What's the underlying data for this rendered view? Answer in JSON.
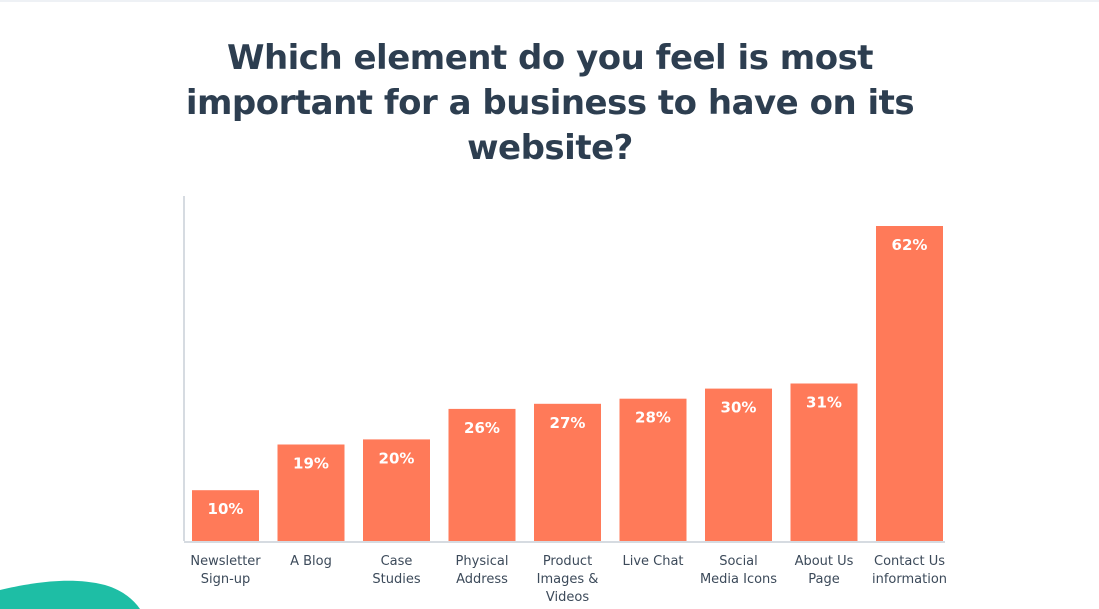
{
  "colors": {
    "bar": "#ff7a59",
    "title": "#2d3e50",
    "value_inside": "#ffffff",
    "value_outside": "#2d3e50",
    "axis": "#d6dbe1",
    "accent_wave": "#1ebea5"
  },
  "chart_data": {
    "type": "bar",
    "title": "Which element do you feel is most important for a business to have on its website?",
    "xlabel": "",
    "ylabel": "",
    "ylim": [
      0,
      70
    ],
    "value_suffix": "%",
    "grid": false,
    "legend": "none",
    "categories": [
      [
        "Newsletter",
        "Sign-up"
      ],
      [
        "A Blog"
      ],
      [
        "Case",
        "Studies"
      ],
      [
        "Physical",
        "Address"
      ],
      [
        "Product",
        "Images &",
        "Videos"
      ],
      [
        "Live Chat"
      ],
      [
        "Social",
        "Media Icons"
      ],
      [
        "About Us",
        "Page"
      ],
      [
        "Contact Us",
        "information"
      ]
    ],
    "values": [
      10,
      19,
      20,
      26,
      27,
      28,
      30,
      31,
      62
    ],
    "labels": [
      "10%",
      "19%",
      "20%",
      "26%",
      "27%",
      "28%",
      "30%",
      "31%",
      "62%"
    ]
  }
}
